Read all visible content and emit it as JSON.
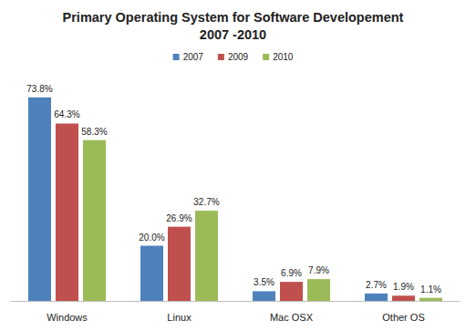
{
  "chart_data": {
    "type": "bar",
    "title": "Primary Operating System for Software Developement",
    "subtitle": "2007 -2010",
    "categories": [
      "Windows",
      "Linux",
      "Mac OSX",
      "Other OS"
    ],
    "series": [
      {
        "name": "2007",
        "color": "#4f81bd",
        "values": [
          73.8,
          20.0,
          3.5,
          2.7
        ],
        "value_labels": [
          "73.8%",
          "20.0%",
          "3.5%",
          "2.7%"
        ]
      },
      {
        "name": "2009",
        "color": "#c0504d",
        "values": [
          64.3,
          26.9,
          6.9,
          1.9
        ],
        "value_labels": [
          "64.3%",
          "26.9%",
          "6.9%",
          "1.9%"
        ]
      },
      {
        "name": "2010",
        "color": "#9bbb59",
        "values": [
          58.3,
          32.7,
          7.9,
          1.1
        ],
        "value_labels": [
          "58.3%",
          "32.7%",
          "7.9%",
          "1.1%"
        ]
      }
    ],
    "ylim": [
      0,
      80
    ],
    "data_labels": true,
    "tick_labels": "x",
    "legend": "top",
    "grid": false
  }
}
